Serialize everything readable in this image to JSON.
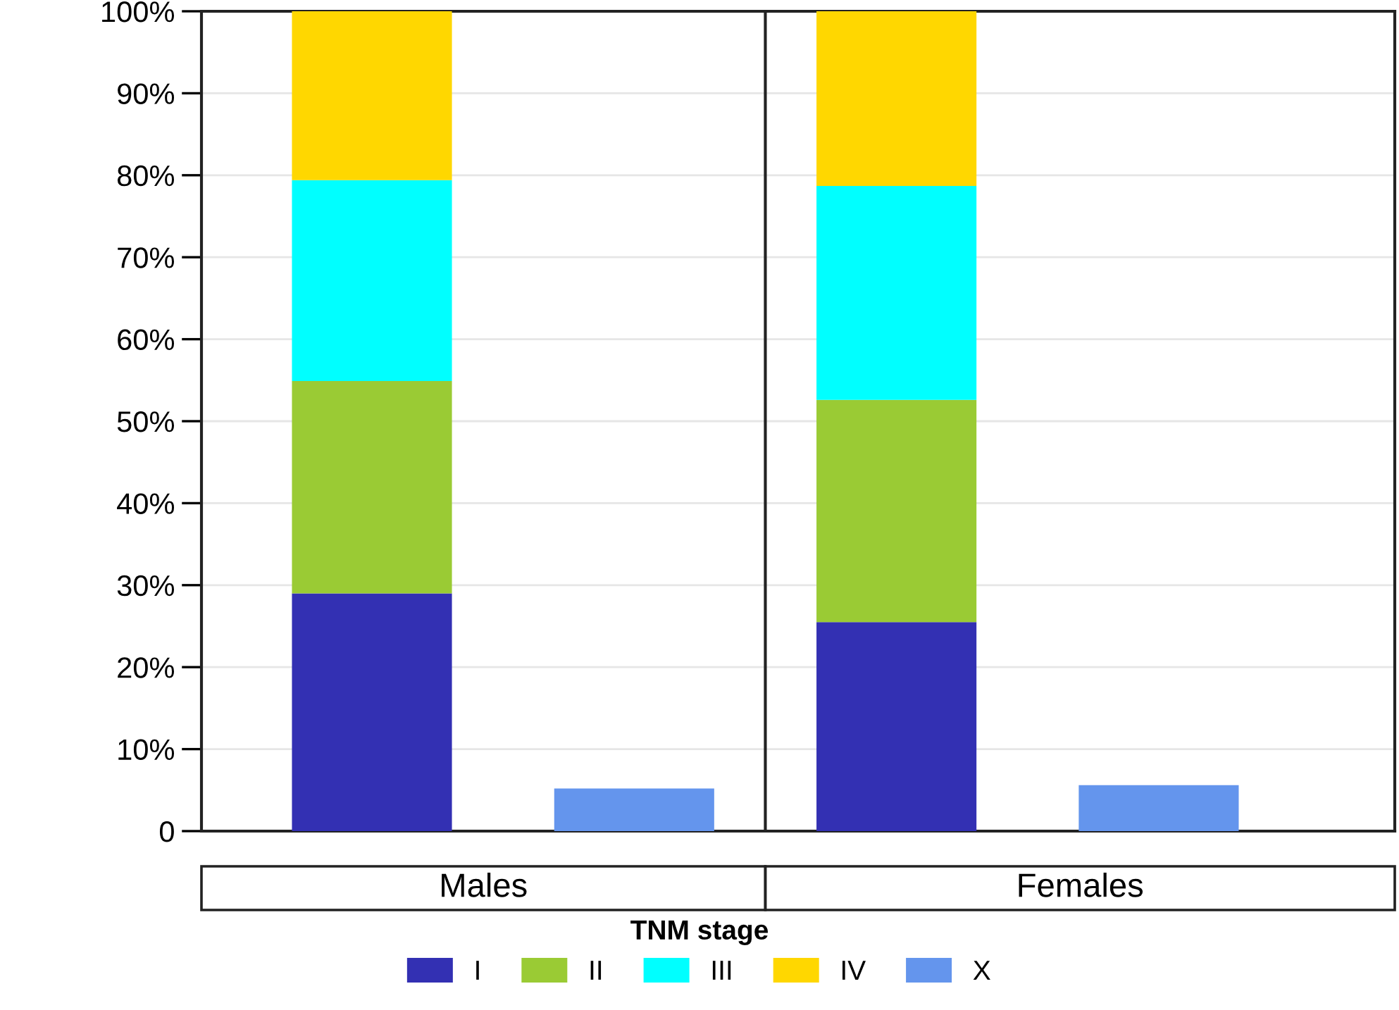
{
  "chart_data": {
    "type": "bar",
    "stacked": true,
    "categories": [
      null,
      null,
      null,
      null
    ],
    "annotations": [
      "Males",
      "Females"
    ],
    "ylim": [
      0,
      100
    ],
    "yticks": [
      0,
      {
        "value": 10,
        "label": "10%"
      },
      {
        "value": 20,
        "label": "20%"
      },
      {
        "value": 30,
        "label": "30%"
      },
      {
        "value": 40,
        "label": "40%"
      },
      {
        "value": 50,
        "label": "50%"
      },
      {
        "value": 60,
        "label": "60%"
      },
      {
        "value": 70,
        "label": "70%"
      },
      {
        "value": 80,
        "label": "80%"
      },
      {
        "value": 90,
        "label": "90%"
      },
      {
        "value": 100,
        "label": "100%"
      }
    ],
    "grid": "y",
    "tick_labels": "y",
    "legend": "bottom",
    "legend_title": "TNM stage",
    "series": [
      {
        "name": "I",
        "color": "#3330b3",
        "values": [
          29.0,
          null,
          25.5,
          null
        ]
      },
      {
        "name": "II",
        "color": "#9acb34",
        "values": [
          25.9,
          null,
          27.1,
          null
        ]
      },
      {
        "name": "III",
        "color": "#00ffff",
        "values": [
          24.5,
          null,
          26.1,
          null
        ]
      },
      {
        "name": "IV",
        "color": "#ffd700",
        "values": [
          20.6,
          null,
          21.3,
          null
        ]
      },
      {
        "name": "X",
        "color": "#6495ed",
        "values": [
          null,
          5.2,
          null,
          5.6
        ]
      }
    ]
  }
}
